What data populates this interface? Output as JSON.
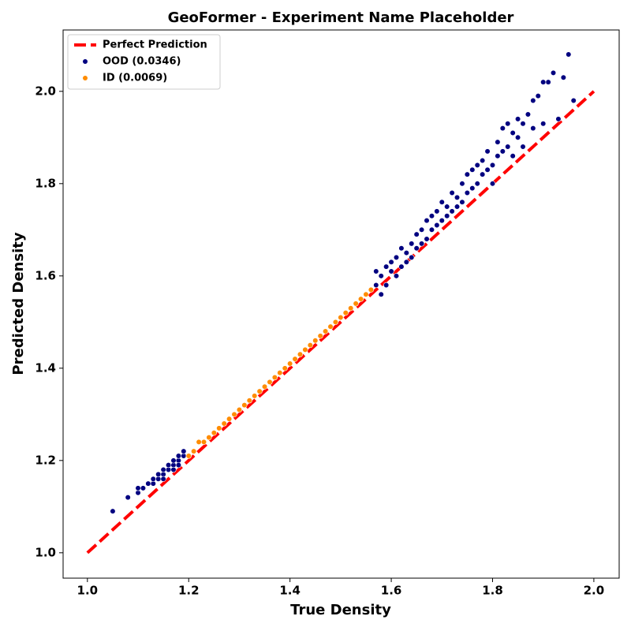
{
  "chart_data": {
    "type": "scatter",
    "title": "GeoFormer - Experiment Name Placeholder",
    "x_label": "True Density",
    "y_label": "Predicted Density",
    "xlim": [
      0.952,
      2.05
    ],
    "ylim": [
      0.945,
      2.133
    ],
    "xticks": [
      {
        "value": 1,
        "label": "1.0"
      },
      1.2,
      1.4,
      1.6,
      1.8,
      {
        "value": 2,
        "label": "2.0"
      }
    ],
    "yticks": [
      {
        "value": 1,
        "label": "1.0"
      },
      1.2,
      1.4,
      1.6,
      1.8,
      {
        "value": 2,
        "label": "2.0"
      }
    ],
    "legend": "upper left",
    "series": [
      {
        "name": "Perfect Prediction",
        "type": "line",
        "color": "#ff0000",
        "x": [
          1,
          2
        ],
        "values": [
          1,
          2
        ]
      },
      {
        "name": "OOD (0.0346)",
        "color": "#000080",
        "x": [
          1.05,
          1.08,
          1.1,
          1.1,
          1.11,
          1.12,
          1.13,
          1.13,
          1.14,
          1.14,
          1.15,
          1.15,
          1.16,
          1.16,
          1.17,
          1.17,
          1.18,
          1.18,
          1.19,
          1.19,
          1.2,
          1.17,
          1.15,
          1.18,
          1.57,
          1.57,
          1.58,
          1.58,
          1.59,
          1.59,
          1.6,
          1.6,
          1.61,
          1.61,
          1.62,
          1.62,
          1.63,
          1.63,
          1.64,
          1.64,
          1.65,
          1.65,
          1.66,
          1.66,
          1.67,
          1.67,
          1.68,
          1.68,
          1.69,
          1.69,
          1.7,
          1.7,
          1.71,
          1.71,
          1.72,
          1.72,
          1.73,
          1.73,
          1.74,
          1.74,
          1.75,
          1.75,
          1.76,
          1.76,
          1.77,
          1.77,
          1.78,
          1.78,
          1.79,
          1.79,
          1.8,
          1.8,
          1.81,
          1.81,
          1.82,
          1.82,
          1.83,
          1.83,
          1.84,
          1.84,
          1.85,
          1.85,
          1.86,
          1.86,
          1.87,
          1.88,
          1.89,
          1.9,
          1.91,
          1.92,
          1.93,
          1.94,
          1.95,
          1.96,
          1.88,
          1.9
        ],
        "values": [
          1.09,
          1.12,
          1.13,
          1.14,
          1.14,
          1.15,
          1.15,
          1.16,
          1.16,
          1.17,
          1.17,
          1.18,
          1.18,
          1.19,
          1.19,
          1.18,
          1.2,
          1.19,
          1.21,
          1.22,
          1.21,
          1.2,
          1.16,
          1.21,
          1.58,
          1.61,
          1.56,
          1.6,
          1.62,
          1.58,
          1.61,
          1.63,
          1.6,
          1.64,
          1.62,
          1.66,
          1.63,
          1.65,
          1.67,
          1.64,
          1.66,
          1.69,
          1.67,
          1.7,
          1.68,
          1.72,
          1.7,
          1.73,
          1.71,
          1.74,
          1.72,
          1.76,
          1.73,
          1.75,
          1.74,
          1.78,
          1.75,
          1.77,
          1.76,
          1.8,
          1.78,
          1.82,
          1.79,
          1.83,
          1.8,
          1.84,
          1.82,
          1.85,
          1.83,
          1.87,
          1.84,
          1.8,
          1.86,
          1.89,
          1.87,
          1.92,
          1.88,
          1.93,
          1.86,
          1.91,
          1.9,
          1.94,
          1.88,
          1.93,
          1.95,
          1.98,
          1.99,
          1.93,
          2.02,
          2.04,
          1.94,
          2.03,
          2.08,
          1.98,
          1.92,
          2.02
        ]
      },
      {
        "name": "ID (0.0069)",
        "color": "#ff8c00",
        "x": [
          1.2,
          1.21,
          1.22,
          1.23,
          1.24,
          1.25,
          1.26,
          1.27,
          1.28,
          1.29,
          1.3,
          1.31,
          1.32,
          1.33,
          1.34,
          1.35,
          1.36,
          1.37,
          1.38,
          1.39,
          1.4,
          1.41,
          1.42,
          1.43,
          1.44,
          1.45,
          1.46,
          1.47,
          1.48,
          1.49,
          1.5,
          1.51,
          1.52,
          1.53,
          1.54,
          1.55,
          1.56
        ],
        "values": [
          1.21,
          1.22,
          1.24,
          1.24,
          1.25,
          1.26,
          1.27,
          1.28,
          1.29,
          1.3,
          1.31,
          1.32,
          1.33,
          1.34,
          1.35,
          1.36,
          1.37,
          1.38,
          1.39,
          1.4,
          1.41,
          1.42,
          1.43,
          1.44,
          1.45,
          1.46,
          1.47,
          1.48,
          1.49,
          1.5,
          1.51,
          1.52,
          1.53,
          1.54,
          1.55,
          1.56,
          1.57
        ]
      }
    ]
  }
}
